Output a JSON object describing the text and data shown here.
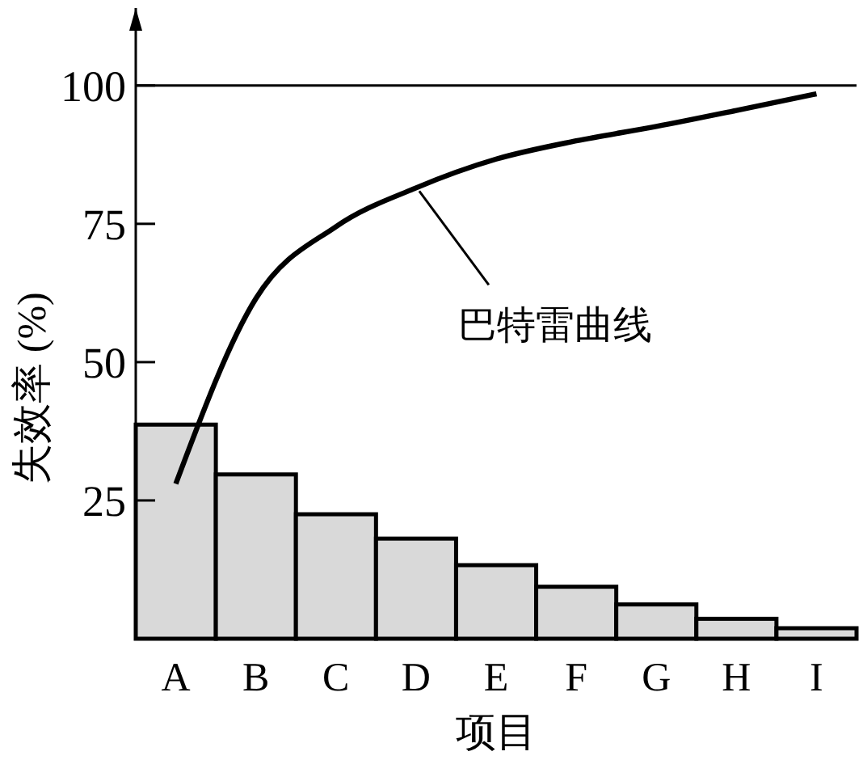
{
  "chart_data": {
    "type": "bar",
    "xlabel": "项目",
    "ylabel": "失效率 (%)",
    "categories": [
      "A",
      "B",
      "C",
      "D",
      "E",
      "F",
      "G",
      "H",
      "I"
    ],
    "ylim": [
      0,
      114
    ],
    "yticks": [
      25,
      50,
      75,
      100
    ],
    "grid": false,
    "legend": false,
    "ref_lines": [
      {
        "axis": "y",
        "value": 100,
        "color": "#000000"
      }
    ],
    "series": [
      {
        "color": "#d9d9d9",
        "values": [
          38.7,
          29.7,
          22.5,
          18.1,
          13.3,
          9.4,
          6.2,
          3.6,
          1.9
        ]
      },
      {
        "type": "line",
        "name": "巴特雷曲线",
        "color": "#000000",
        "marker": "none",
        "line_style": "solid",
        "values": [
          28,
          61.5,
          74.5,
          81.5,
          86.7,
          90,
          92.6,
          95.5,
          98.5
        ]
      }
    ]
  }
}
